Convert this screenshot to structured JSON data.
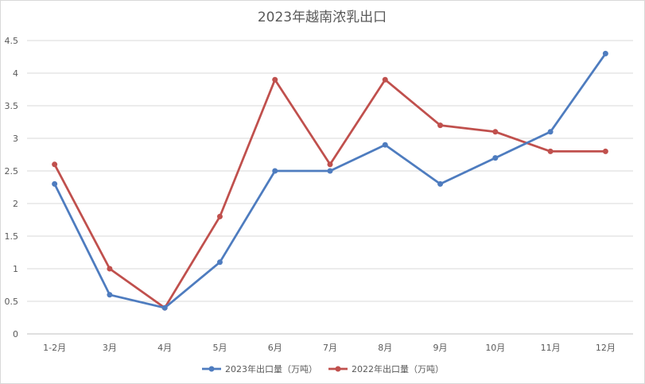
{
  "chart_data": {
    "type": "line",
    "title": "2023年越南浓乳出口",
    "xlabel": "",
    "ylabel": "",
    "categories": [
      "1-2月",
      "3月",
      "4月",
      "5月",
      "6月",
      "7月",
      "8月",
      "9月",
      "10月",
      "11月",
      "12月"
    ],
    "ylim": [
      0,
      4.5
    ],
    "yticks": [
      "0",
      "0.5",
      "1",
      "1.5",
      "2",
      "2.5",
      "3",
      "3.5",
      "4",
      "4.5"
    ],
    "grid": true,
    "legend_position": "bottom",
    "series": [
      {
        "name": "2023年出口量（万吨）",
        "color": "#4e7cbf",
        "values": [
          2.3,
          0.6,
          0.4,
          1.1,
          2.5,
          2.5,
          2.9,
          2.3,
          2.7,
          3.1,
          4.3
        ]
      },
      {
        "name": "2022年出口量（万吨）",
        "color": "#c0504d",
        "values": [
          2.6,
          1.0,
          0.4,
          1.8,
          3.9,
          2.6,
          3.9,
          3.2,
          3.1,
          2.8,
          2.8
        ]
      }
    ]
  }
}
